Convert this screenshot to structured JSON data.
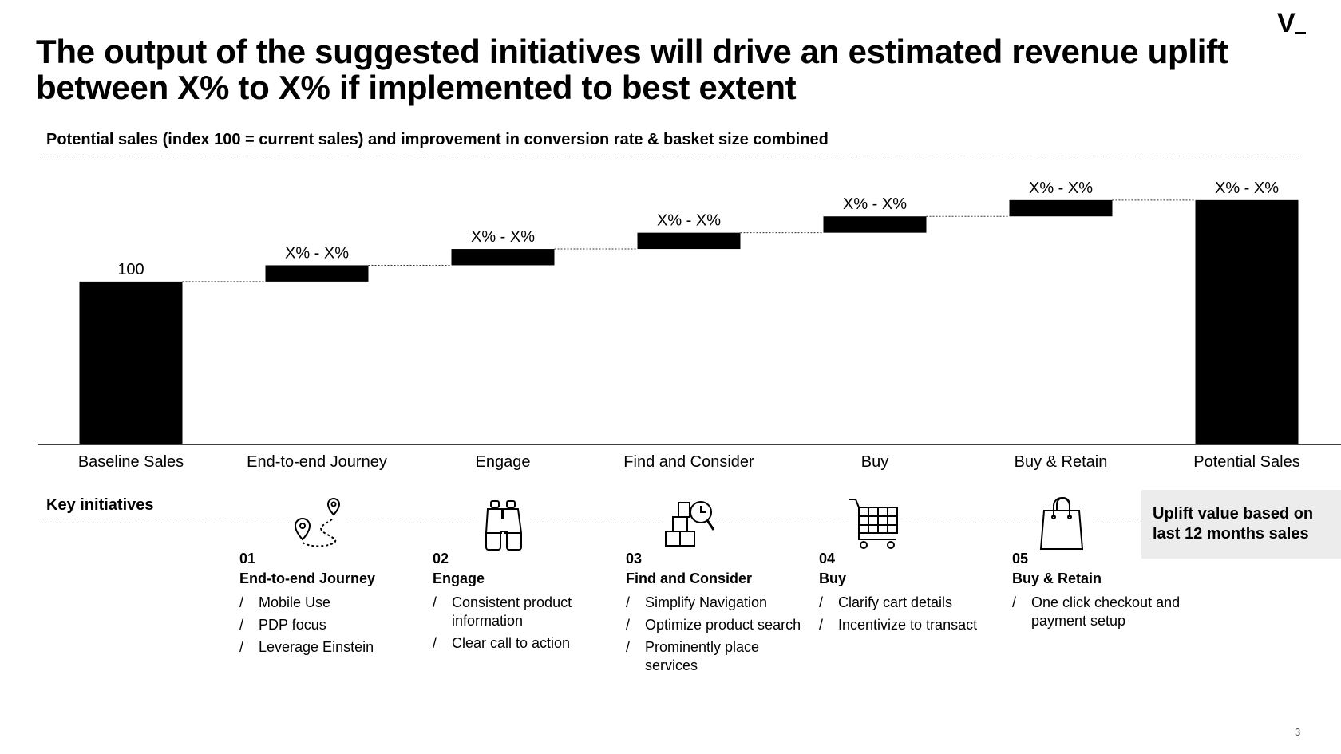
{
  "header": {
    "title": "The output of the suggested initiatives will drive an estimated revenue uplift between X% to X% if implemented to best extent",
    "logo": "V",
    "subtitle": "Potential sales (index 100 = current sales) and improvement in conversion rate & basket size combined"
  },
  "chart_data": {
    "type": "waterfall",
    "categories": [
      "Baseline Sales",
      "End-to-end Journey",
      "Engage",
      "Find and Consider",
      "Buy",
      "Buy & Retain",
      "Potential Sales"
    ],
    "kinds": [
      "total",
      "delta",
      "delta",
      "delta",
      "delta",
      "delta",
      "total"
    ],
    "values": [
      100,
      10,
      10,
      10,
      10,
      10,
      150
    ],
    "data_labels": [
      "100",
      "X% - X%",
      "X% - X%",
      "X% - X%",
      "X% - X%",
      "X% - X%",
      "X% - X%"
    ],
    "bar_color": "#000000",
    "ylim": [
      0,
      170
    ],
    "grid": false
  },
  "initiatives": {
    "label": "Key initiatives",
    "icons": [
      "route-map-pin-icon",
      "binoculars-icon",
      "boxes-magnifier-icon",
      "shopping-cart-icon",
      "shopping-bag-icon"
    ],
    "steps": [
      {
        "num": "01",
        "name": "End-to-end Journey",
        "items": [
          "Mobile Use",
          "PDP focus",
          "Leverage Einstein"
        ]
      },
      {
        "num": "02",
        "name": "Engage",
        "items": [
          "Consistent product information",
          "Clear call to action"
        ]
      },
      {
        "num": "03",
        "name": "Find and Consider",
        "items": [
          "Simplify Navigation",
          "Optimize product search",
          "Prominently place services"
        ]
      },
      {
        "num": "04",
        "name": "Buy",
        "items": [
          "Clarify cart details",
          "Incentivize to transact"
        ]
      },
      {
        "num": "05",
        "name": "Buy & Retain",
        "items": [
          "One click checkout and payment setup"
        ]
      }
    ],
    "uplift_note": "Uplift value based on last 12 months sales"
  },
  "footer": {
    "page": "3"
  }
}
